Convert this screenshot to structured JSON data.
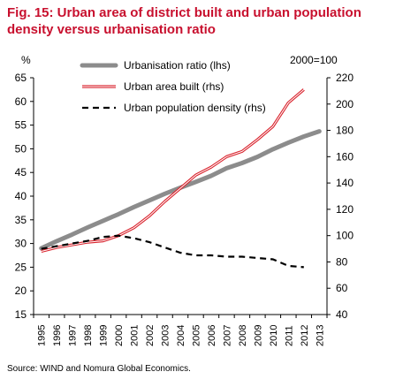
{
  "header": {
    "title_line1": "Fig. 15: Urban area of district built and urban population",
    "title_line2": "density versus urbanisation ratio"
  },
  "footer": {
    "source": "Source: WIND and Nomura Global Economics."
  },
  "colors": {
    "title": "#c8102e",
    "urbanisation": "#8c8c8c",
    "urban_area": "#d9232d",
    "density": "#000000",
    "axis": "#000000"
  },
  "chart_data": {
    "type": "line",
    "left_axis_label": "%",
    "right_axis_label": "2000=100",
    "ylim_left": [
      15,
      65
    ],
    "yticks_left": [
      15,
      20,
      25,
      30,
      35,
      40,
      45,
      50,
      55,
      60,
      65
    ],
    "ylim_right": [
      40,
      220
    ],
    "yticks_right": [
      40,
      60,
      80,
      100,
      120,
      140,
      160,
      180,
      200,
      220
    ],
    "x_categories": [
      "1995",
      "1996",
      "1997",
      "1998",
      "1999",
      "2000",
      "2001",
      "2002",
      "2003",
      "2004",
      "2005",
      "2006",
      "2007",
      "2008",
      "2009",
      "2010",
      "2011",
      "2012",
      "2013"
    ],
    "grid": false,
    "legend_position": "top-left",
    "series": [
      {
        "name": "Urbanisation ratio (lhs)",
        "axis": "left",
        "style": "thick-grey",
        "x": [
          "1995",
          "1996",
          "1997",
          "1998",
          "1999",
          "2000",
          "2001",
          "2002",
          "2003",
          "2004",
          "2005",
          "2006",
          "2007",
          "2008",
          "2009",
          "2010",
          "2011",
          "2012",
          "2013"
        ],
        "values": [
          29.0,
          30.5,
          31.9,
          33.4,
          34.8,
          36.2,
          37.7,
          39.1,
          40.5,
          41.8,
          43.0,
          44.3,
          45.9,
          47.0,
          48.3,
          49.9,
          51.3,
          52.6,
          53.7
        ]
      },
      {
        "name": "Urban area built (rhs)",
        "axis": "right",
        "style": "red-double",
        "x": [
          "1995",
          "1996",
          "1997",
          "1998",
          "1999",
          "2000",
          "2001",
          "2002",
          "2003",
          "2004",
          "2005",
          "2006",
          "2007",
          "2008",
          "2009",
          "2010",
          "2011",
          "2012"
        ],
        "values": [
          88,
          91,
          93,
          95,
          96,
          100,
          106,
          115,
          126,
          136,
          146,
          152,
          160,
          164,
          173,
          183,
          201,
          211
        ]
      },
      {
        "name": "Urban population density (rhs)",
        "axis": "right",
        "style": "black-dashed",
        "x": [
          "1995",
          "1996",
          "1997",
          "1998",
          "1999",
          "2000",
          "2001",
          "2002",
          "2003",
          "2004",
          "2005",
          "2006",
          "2007",
          "2008",
          "2009",
          "2010",
          "2011",
          "2012"
        ],
        "values": [
          90,
          92,
          94,
          96,
          99,
          100,
          98,
          95,
          91,
          87,
          85,
          85,
          84,
          84,
          83,
          82,
          77,
          76
        ]
      }
    ]
  }
}
